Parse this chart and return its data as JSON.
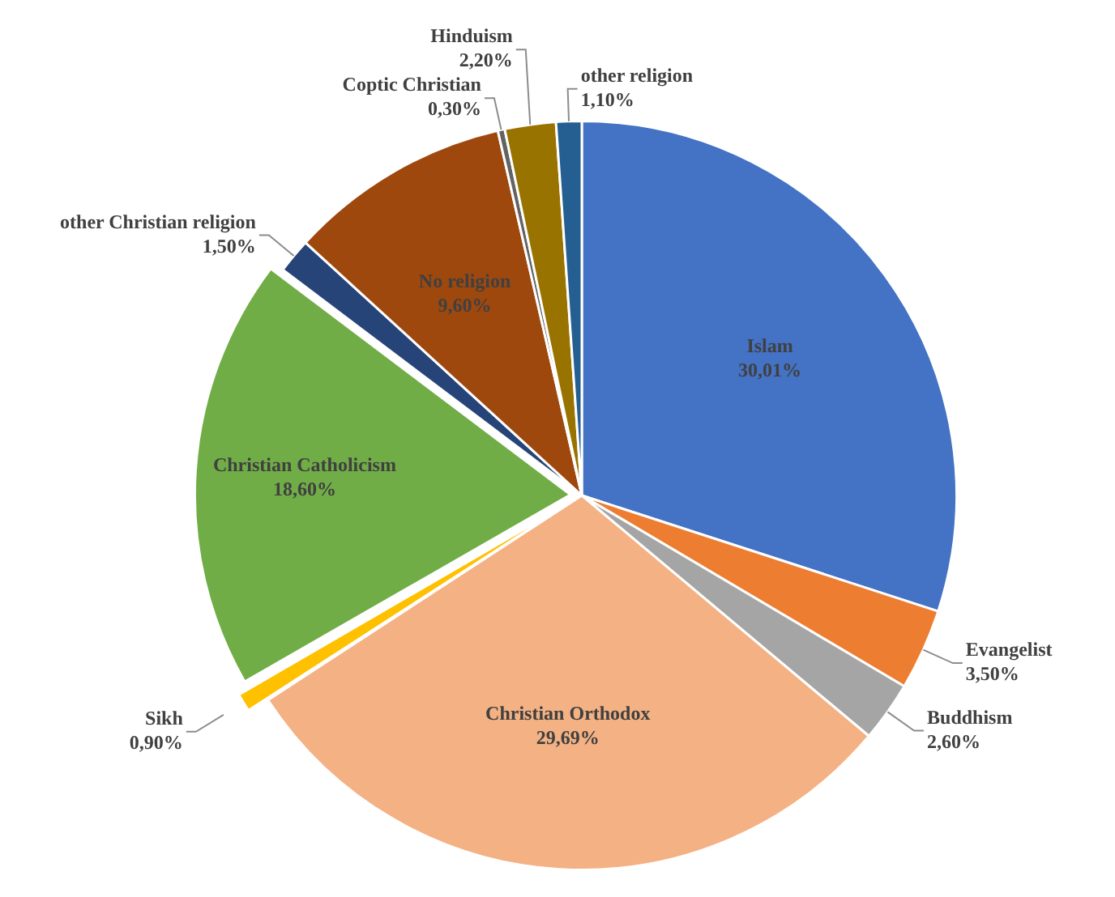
{
  "chart_data": {
    "type": "pie",
    "categories": [
      "Islam",
      "Evangelist",
      "Buddhism",
      "Christian Orthodox",
      "Sikh",
      "Christian Catholicism",
      "other Christian religion",
      "No religion",
      "Coptic Christian",
      "Hinduism",
      "other religion"
    ],
    "values": [
      30.01,
      3.5,
      2.6,
      29.69,
      0.9,
      18.6,
      1.5,
      9.6,
      0.3,
      2.2,
      1.1
    ],
    "value_labels": [
      "30,01%",
      "3,50%",
      "2,60%",
      "29,69%",
      "0,90%",
      "18,60%",
      "1,50%",
      "9,60%",
      "0,30%",
      "2,20%",
      "1,10%"
    ],
    "colors": [
      "#4472c4",
      "#ed7d31",
      "#a5a5a5",
      "#f4b183",
      "#ffc000",
      "#70ad47",
      "#264478",
      "#9e480e",
      "#636363",
      "#997300",
      "#255e91"
    ],
    "legend": false
  }
}
